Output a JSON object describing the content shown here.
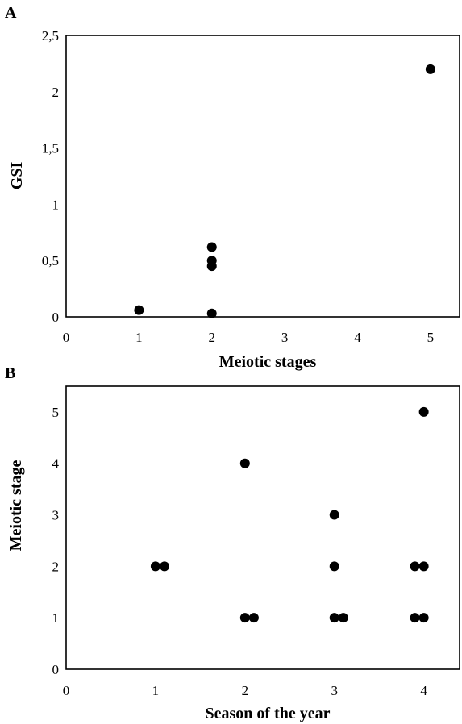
{
  "chart_data": [
    {
      "panel": "A",
      "type": "scatter",
      "title": "",
      "xlabel": "Meiotic stages",
      "ylabel": "GSI",
      "xlim": [
        0,
        5.4
      ],
      "ylim": [
        0,
        2.5
      ],
      "x_ticks": [
        "0",
        "1",
        "2",
        "3",
        "4",
        "5"
      ],
      "y_ticks": [
        "0",
        "0,5",
        "1",
        "1,5",
        "2",
        "2,5"
      ],
      "grid": false,
      "legend": "none",
      "series": [
        {
          "points": [
            {
              "x": 1,
              "y": 0.06
            },
            {
              "x": 2,
              "y": 0.62
            },
            {
              "x": 2,
              "y": 0.5
            },
            {
              "x": 2,
              "y": 0.45
            },
            {
              "x": 2,
              "y": 0.03
            },
            {
              "x": 5,
              "y": 2.2
            }
          ]
        }
      ]
    },
    {
      "panel": "B",
      "type": "scatter",
      "title": "",
      "xlabel": "Season of the year",
      "ylabel": "Meiotic stage",
      "xlim": [
        0,
        4.4
      ],
      "ylim": [
        0,
        5.5
      ],
      "x_ticks": [
        "0",
        "1",
        "2",
        "3",
        "4"
      ],
      "y_ticks": [
        "0",
        "1",
        "2",
        "3",
        "4",
        "5"
      ],
      "grid": false,
      "legend": "none",
      "series": [
        {
          "points": [
            {
              "x": 1,
              "y": 2
            },
            {
              "x": 1.1,
              "y": 2
            },
            {
              "x": 2,
              "y": 4
            },
            {
              "x": 2,
              "y": 1
            },
            {
              "x": 2.1,
              "y": 1
            },
            {
              "x": 3,
              "y": 3
            },
            {
              "x": 3,
              "y": 2
            },
            {
              "x": 3,
              "y": 1
            },
            {
              "x": 3.1,
              "y": 1
            },
            {
              "x": 4,
              "y": 5
            },
            {
              "x": 3.9,
              "y": 2
            },
            {
              "x": 4,
              "y": 2
            },
            {
              "x": 3.9,
              "y": 1
            },
            {
              "x": 4,
              "y": 1
            }
          ]
        }
      ]
    }
  ]
}
